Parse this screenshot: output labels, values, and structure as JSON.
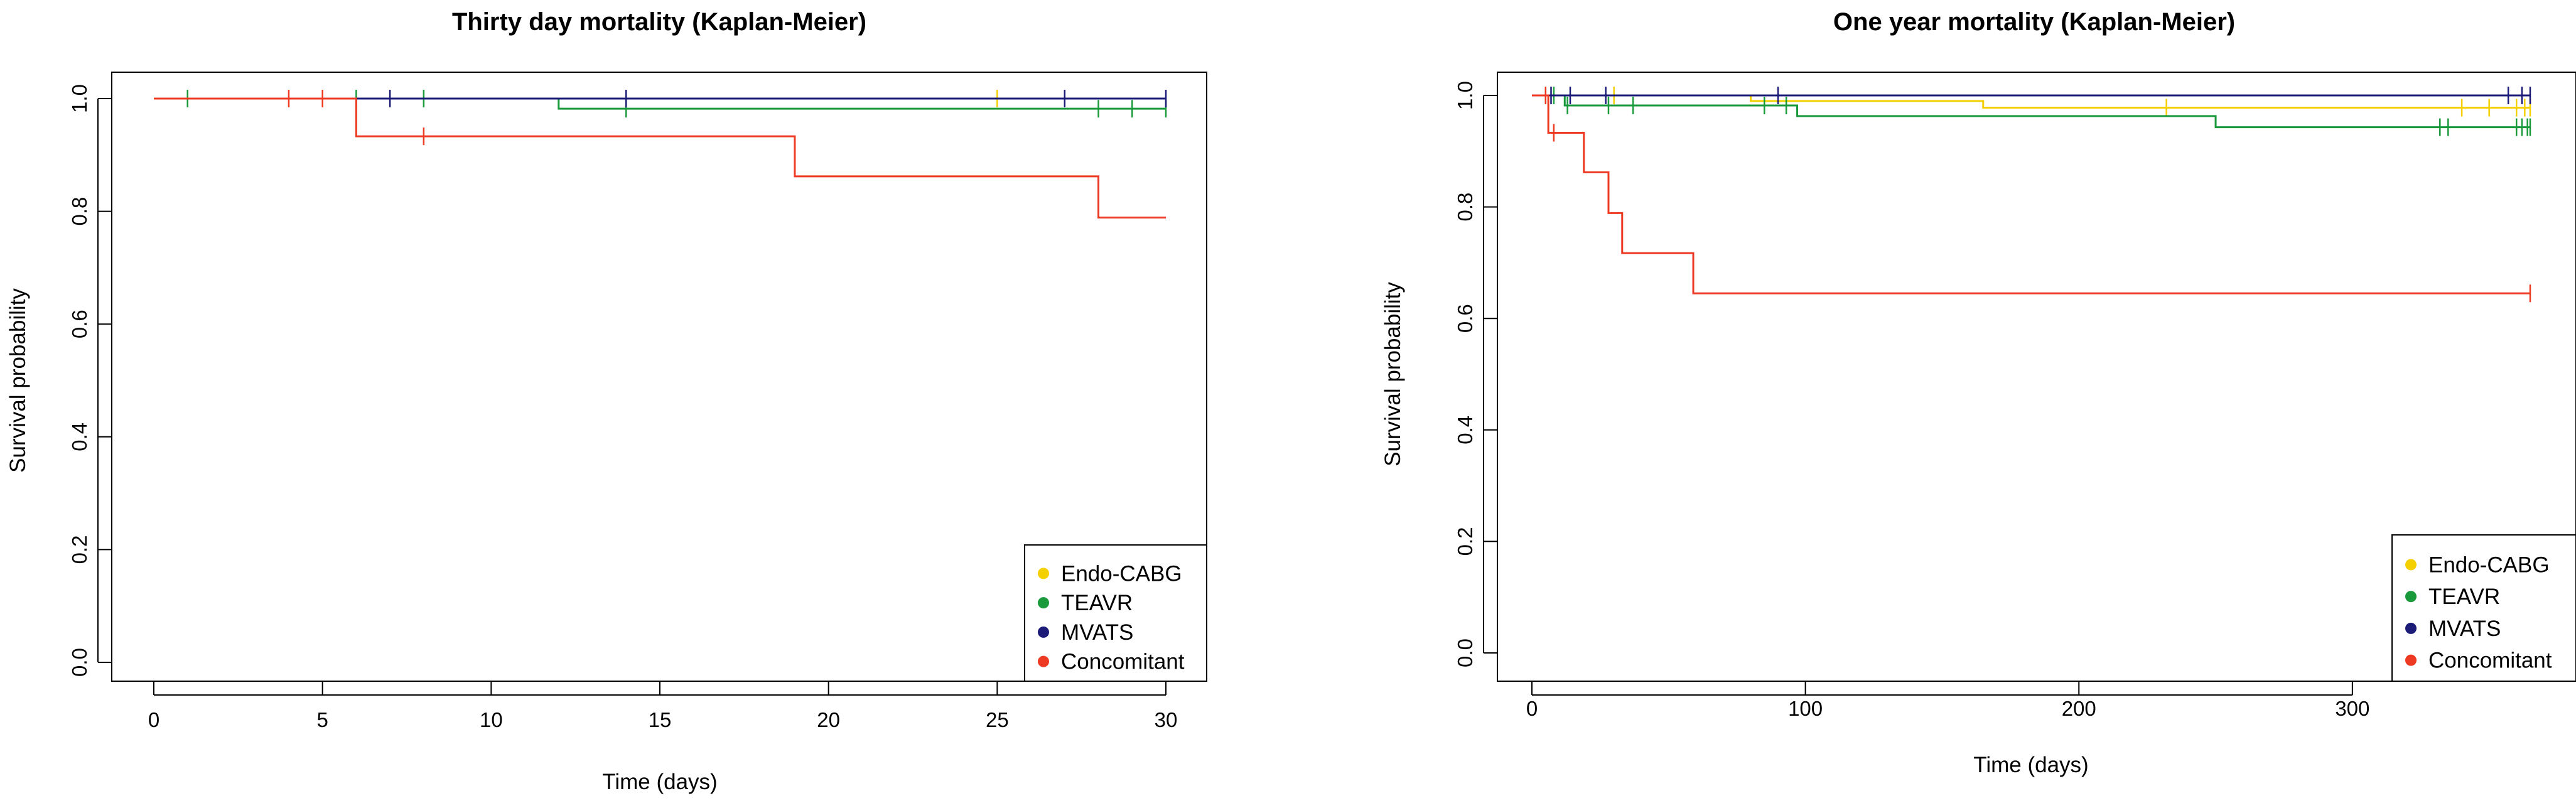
{
  "chart_data": [
    {
      "type": "line",
      "step": true,
      "title": "Thirty day mortality (Kaplan-Meier)",
      "xlabel": "Time (days)",
      "ylabel": "Survival probability",
      "xlim": [
        0,
        30
      ],
      "ylim": [
        0,
        1
      ],
      "xticks": [
        0,
        5,
        10,
        15,
        20,
        25,
        30
      ],
      "yticks": [
        "0.0",
        "0.2",
        "0.4",
        "0.6",
        "0.8",
        "1.0"
      ],
      "legend_position": "bottom-right",
      "grid": false,
      "series": [
        {
          "name": "Endo-CABG",
          "color": "#f5d000",
          "x": [
            0,
            30
          ],
          "y": [
            1.0,
            1.0
          ],
          "censor": [
            25
          ]
        },
        {
          "name": "TEAVR",
          "color": "#1a9a3a",
          "x": [
            0,
            12,
            30
          ],
          "y": [
            1.0,
            0.982,
            0.982
          ],
          "censor": [
            1,
            6,
            8,
            14,
            28,
            29,
            30
          ]
        },
        {
          "name": "MVATS",
          "color": "#1c1c78",
          "x": [
            0,
            30
          ],
          "y": [
            1.0,
            1.0
          ],
          "censor": [
            7,
            14,
            27,
            30
          ]
        },
        {
          "name": "Concomitant",
          "color": "#ee3a22",
          "x": [
            0,
            6,
            19,
            28,
            30
          ],
          "y": [
            1.0,
            0.933,
            0.862,
            0.789,
            0.789
          ],
          "censor": [
            4,
            5,
            8
          ]
        }
      ]
    },
    {
      "type": "line",
      "step": true,
      "title": "One year mortality (Kaplan-Meier)",
      "xlabel": "Time (days)",
      "ylabel": "Survival probability",
      "xlim": [
        0,
        365
      ],
      "ylim": [
        0,
        1
      ],
      "xticks": [
        0,
        100,
        200,
        300
      ],
      "yticks": [
        "0.0",
        "0.2",
        "0.4",
        "0.6",
        "0.8",
        "1.0"
      ],
      "legend_position": "bottom-right",
      "grid": false,
      "series": [
        {
          "name": "Endo-CABG",
          "color": "#f5d000",
          "x": [
            0,
            80,
            165,
            365
          ],
          "y": [
            1.0,
            0.99,
            0.978,
            0.978
          ],
          "censor": [
            30,
            232,
            340,
            350,
            360,
            363,
            365
          ]
        },
        {
          "name": "TEAVR",
          "color": "#1a9a3a",
          "x": [
            0,
            12,
            97,
            250,
            365
          ],
          "y": [
            1.0,
            0.982,
            0.963,
            0.943,
            0.943
          ],
          "censor": [
            5,
            8,
            13,
            28,
            37,
            85,
            93,
            332,
            335,
            360,
            362,
            364,
            365
          ]
        },
        {
          "name": "MVATS",
          "color": "#1c1c78",
          "x": [
            0,
            365
          ],
          "y": [
            1.0,
            1.0
          ],
          "censor": [
            7,
            14,
            27,
            90,
            357,
            362,
            365
          ]
        },
        {
          "name": "Concomitant",
          "color": "#ee3a22",
          "x": [
            0,
            6,
            19,
            28,
            33,
            59,
            365
          ],
          "y": [
            1.0,
            0.933,
            0.862,
            0.789,
            0.717,
            0.645,
            0.645
          ],
          "censor": [
            5,
            8,
            365
          ]
        }
      ]
    }
  ]
}
